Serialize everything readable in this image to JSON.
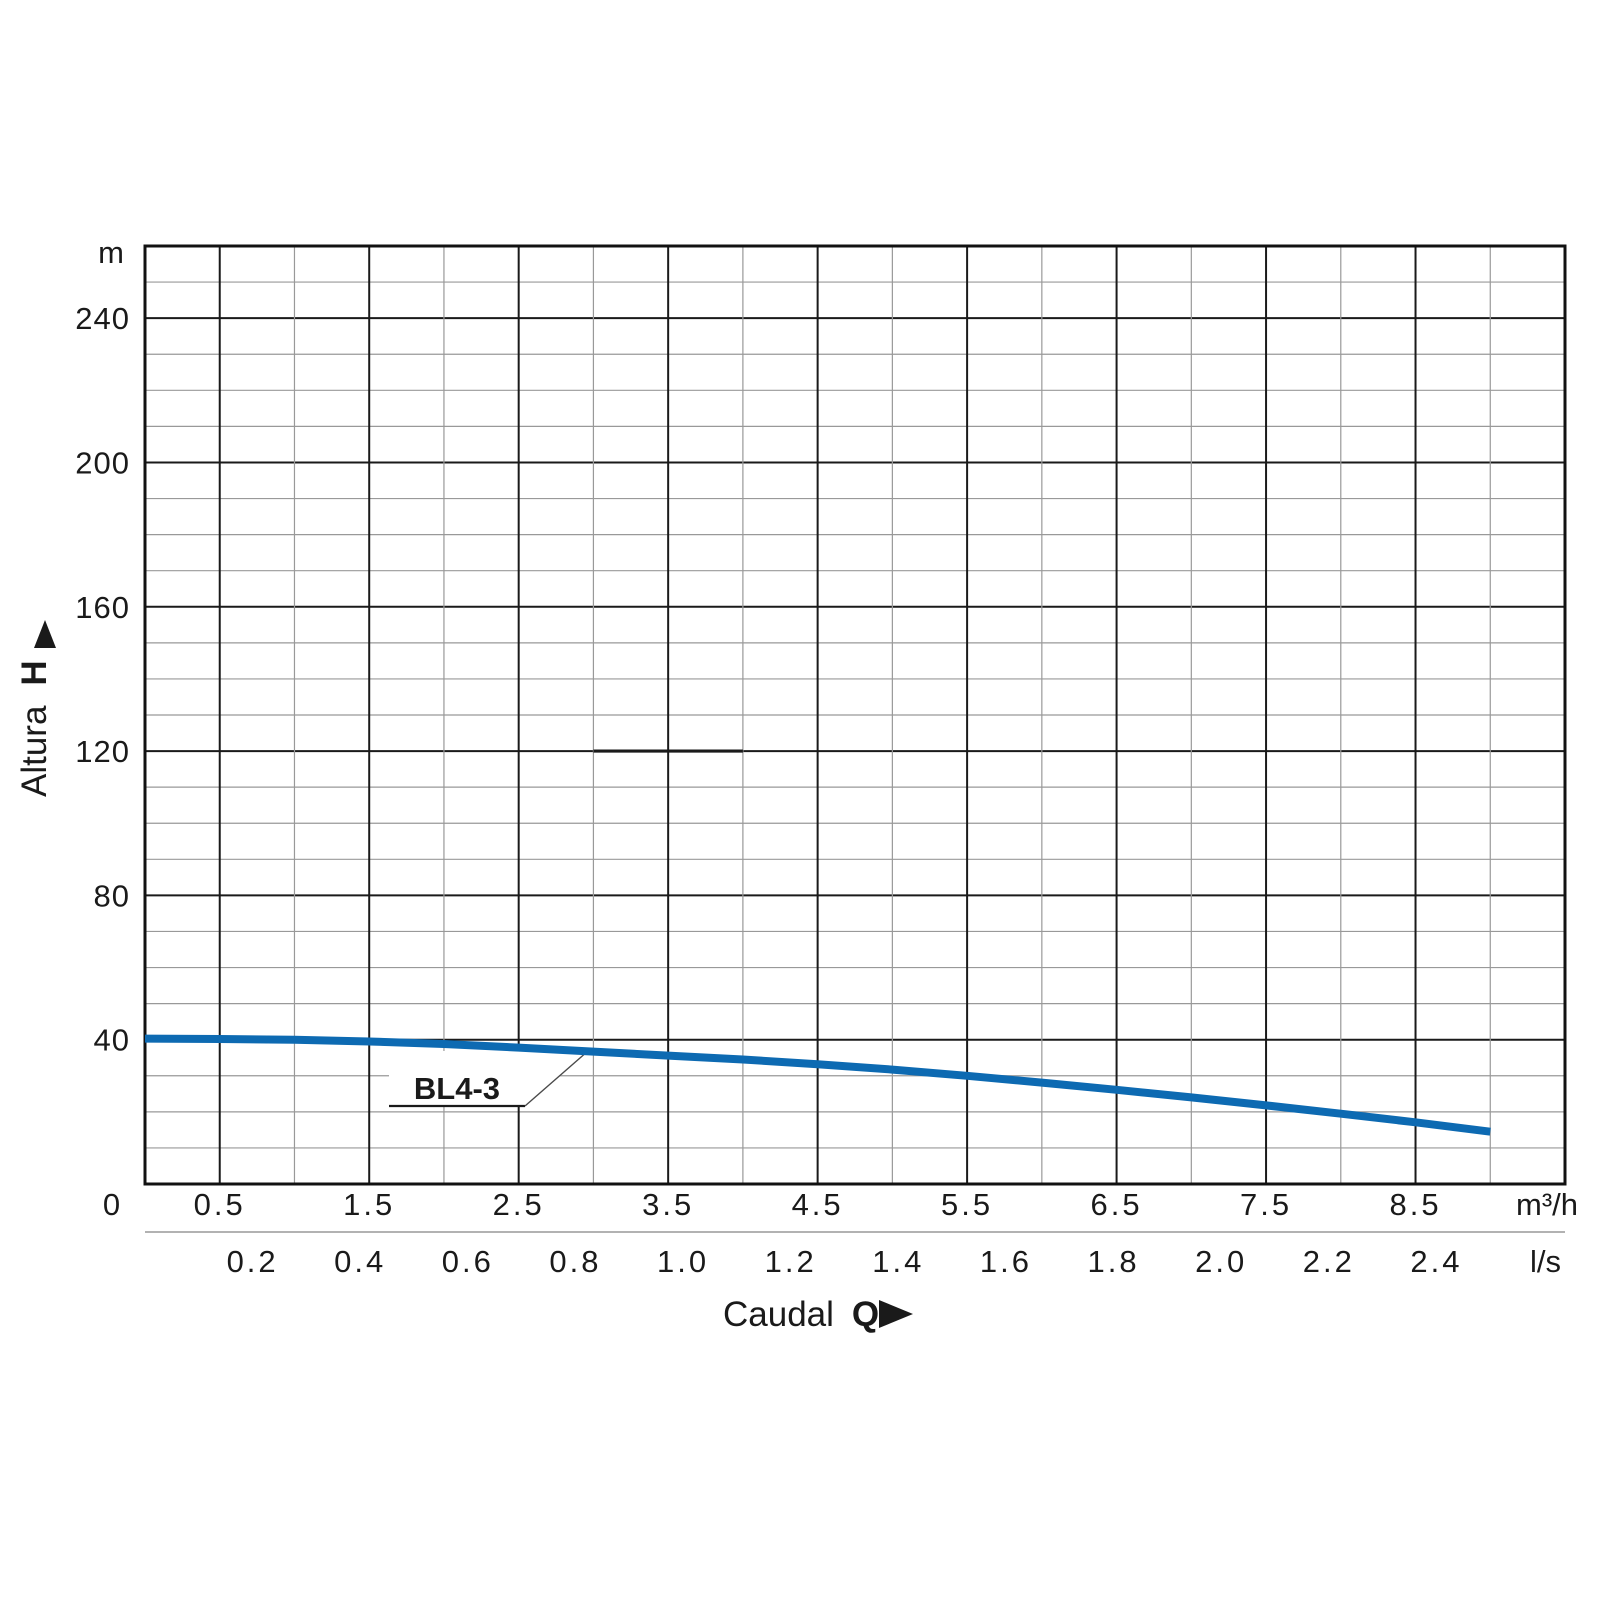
{
  "chart_data": {
    "type": "line",
    "title": "",
    "series": [
      {
        "name": "BL4-3",
        "color": "#0d6ab2",
        "x_m3h": [
          0,
          0.5,
          1,
          1.5,
          2,
          2.5,
          3,
          3.5,
          4,
          4.5,
          5,
          5.5,
          6,
          6.5,
          7,
          7.5,
          8,
          8.5,
          9
        ],
        "h_m": [
          40.3,
          40.2,
          40.0,
          39.5,
          38.8,
          37.8,
          36.7,
          35.6,
          34.5,
          33.2,
          31.7,
          30.0,
          28.1,
          26.1,
          24.0,
          21.8,
          19.5,
          17.1,
          14.5
        ]
      }
    ],
    "flat_segment": {
      "h_m": 120,
      "q_start": 3.0,
      "q_end": 4.0,
      "color": "#1a1a1a"
    },
    "y_axis": {
      "title": "Altura",
      "symbol": "H",
      "unit": "m",
      "min": 0,
      "max": 260,
      "minor_step": 10,
      "major_step": 40,
      "tick_labels": [
        240,
        200,
        160,
        120,
        80,
        40
      ]
    },
    "x_axis": {
      "title": "Caudal",
      "symbol": "Q",
      "unit": "m³/h",
      "min": 0,
      "max": 9.5,
      "minor_step": 0.5,
      "origin_label": "0",
      "tick_labels": [
        0.5,
        1.5,
        2.5,
        3.5,
        4.5,
        5.5,
        6.5,
        7.5,
        8.5
      ]
    },
    "x_axis_secondary": {
      "unit": "l/s",
      "m3h_per_unit": 3.6,
      "tick_labels": [
        0.2,
        0.4,
        0.6,
        0.8,
        1.0,
        1.2,
        1.4,
        1.6,
        1.8,
        2.0,
        2.2,
        2.4
      ]
    },
    "curve_label": {
      "text": "BL4-3"
    },
    "grid": {
      "major_color": "#1a1a1a",
      "minor_color": "#999999",
      "border_color": "#111111",
      "on": true
    },
    "legend_position": "callout-on-curve"
  }
}
